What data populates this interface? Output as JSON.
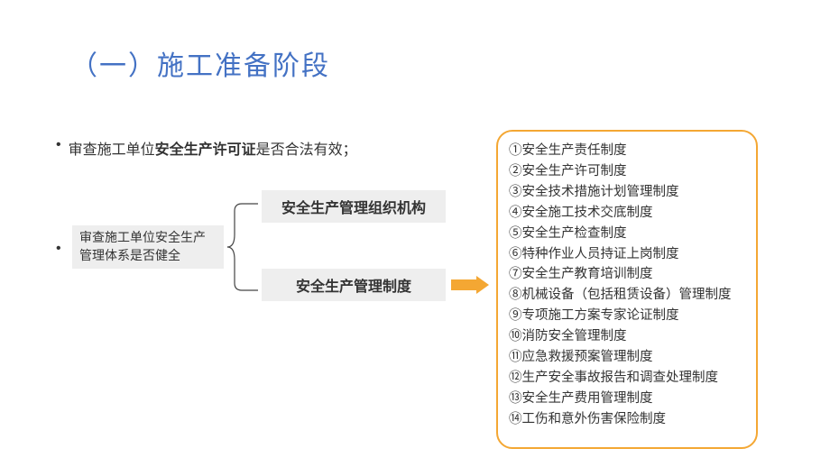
{
  "title": "（一）施工准备阶段",
  "bullet1": {
    "pre": "审查施工单位",
    "bold": "安全生产许可证",
    "post": "是否合法有效；"
  },
  "left_box": "审查施工单位安全生产管理体系是否健全",
  "right_box_1": "安全生产管理组织机构",
  "right_box_2": "安全生产管理制度",
  "list_items": [
    "①安全生产责任制度",
    "②安全生产许可制度",
    "③安全技术措施计划管理制度",
    "④安全施工技术交底制度",
    "⑤安全生产检查制度",
    "⑥特种作业人员持证上岗制度",
    "⑦安全生产教育培训制度",
    "⑧机械设备（包括租赁设备）管理制度",
    "⑨专项施工方案专家论证制度",
    "⑩消防安全管理制度",
    "⑪应急救援预案管理制度",
    "⑫生产安全事故报告和调查处理制度",
    "⑬安全生产费用管理制度",
    "⑭工伤和意外伤害保险制度"
  ],
  "colors": {
    "title": "#4472c4",
    "box_bg": "#eeeeee",
    "border": "#f4a733",
    "arrow": "#f4a733",
    "text": "#333333",
    "bracket": "#444444"
  }
}
